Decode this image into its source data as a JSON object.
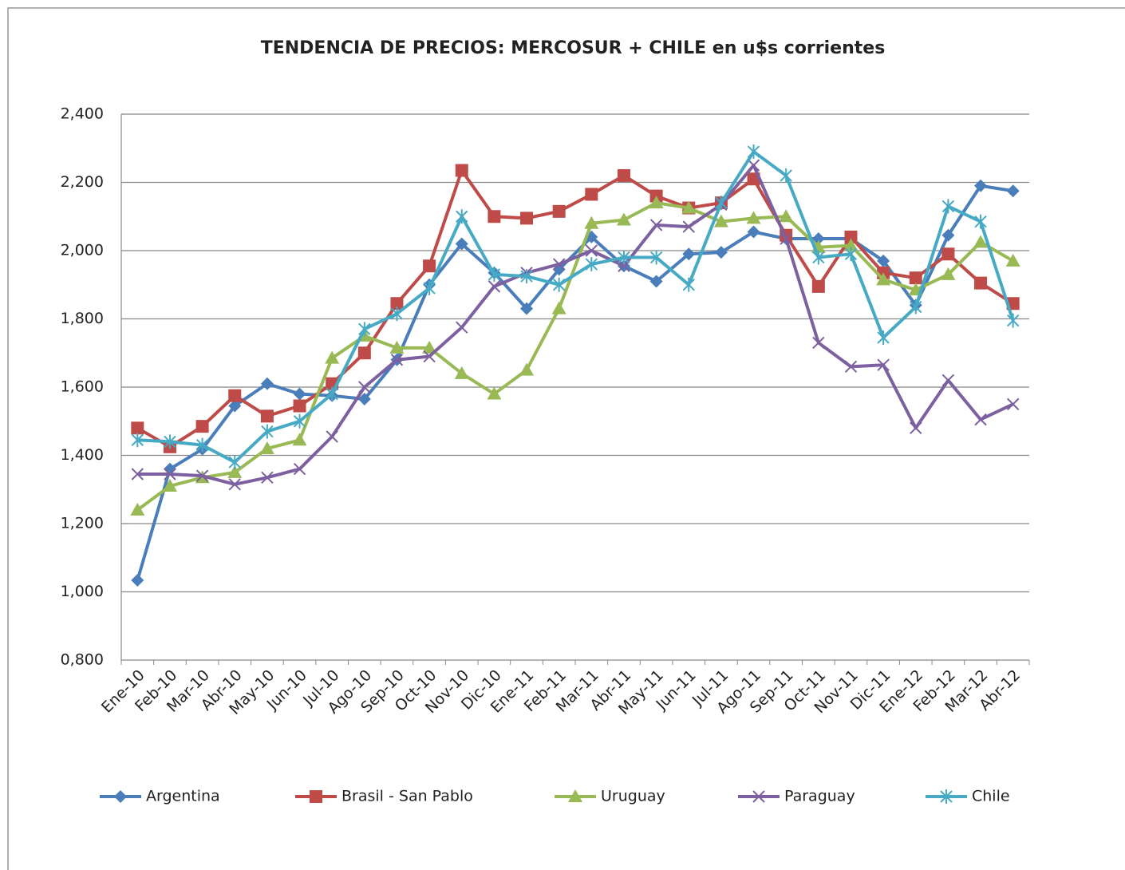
{
  "chart_data": {
    "type": "line",
    "title": "TENDENCIA DE PRECIOS: MERCOSUR + CHILE en u$s corrientes",
    "categories": [
      "Ene-10",
      "Feb-10",
      "Mar-10",
      "Abr-10",
      "May-10",
      "Jun-10",
      "Jul-10",
      "Ago-10",
      "Sep-10",
      "Oct-10",
      "Nov-10",
      "Dic-10",
      "Ene-11",
      "Feb-11",
      "Mar-11",
      "Abr-11",
      "May-11",
      "Jun-11",
      "Jul-11",
      "Ago-11",
      "Sep-11",
      "Oct-11",
      "Nov-11",
      "Dic-11",
      "Ene-12",
      "Feb-12",
      "Mar-12",
      "Abr-12"
    ],
    "series": [
      {
        "name": "Argentina",
        "color": "#4a7ebb",
        "marker": "diamond",
        "values": [
          1034,
          1360,
          1418,
          1545,
          1610,
          1580,
          1575,
          1565,
          1680,
          1900,
          2020,
          1935,
          1830,
          1945,
          2040,
          1955,
          1910,
          1990,
          1995,
          2055,
          2035,
          2035,
          2035,
          1970,
          1840,
          2045,
          2190,
          2175
        ]
      },
      {
        "name": "Brasil - San Pablo",
        "color": "#be4b48",
        "marker": "square",
        "values": [
          1480,
          1425,
          1485,
          1575,
          1515,
          1545,
          1610,
          1700,
          1845,
          1955,
          2235,
          2100,
          2095,
          2115,
          2165,
          2220,
          2160,
          2125,
          2140,
          2210,
          2045,
          1895,
          2040,
          1935,
          1920,
          1990,
          1905,
          1845
        ]
      },
      {
        "name": "Uruguay",
        "color": "#98b954",
        "marker": "triangle",
        "values": [
          1240,
          1310,
          1335,
          1350,
          1420,
          1445,
          1685,
          1750,
          1715,
          1715,
          1640,
          1580,
          1650,
          1830,
          2080,
          2090,
          2140,
          2125,
          2085,
          2095,
          2100,
          2010,
          2015,
          1915,
          1885,
          1930,
          2025,
          1970
        ]
      },
      {
        "name": "Paraguay",
        "color": "#7d60a0",
        "marker": "x",
        "values": [
          1345,
          1345,
          1340,
          1315,
          1335,
          1360,
          1455,
          1600,
          1680,
          1690,
          1775,
          1895,
          1935,
          1960,
          2000,
          1955,
          2075,
          2070,
          2135,
          2250,
          2035,
          1730,
          1660,
          1665,
          1480,
          1620,
          1505,
          1550
        ]
      },
      {
        "name": "Chile",
        "color": "#46aac5",
        "marker": "asterisk",
        "values": [
          1445,
          1440,
          1430,
          1380,
          1470,
          1500,
          1580,
          1770,
          1815,
          1890,
          2100,
          1930,
          1925,
          1900,
          1960,
          1980,
          1980,
          1900,
          2140,
          2290,
          2220,
          1980,
          1990,
          1745,
          1835,
          2130,
          2085,
          1795
        ]
      }
    ],
    "ylim": [
      800,
      2400
    ],
    "yticks": [
      {
        "value": 800,
        "label": "0,800"
      },
      {
        "value": 1000,
        "label": "1,000"
      },
      {
        "value": 1200,
        "label": "1,200"
      },
      {
        "value": 1400,
        "label": "1,400"
      },
      {
        "value": 1600,
        "label": "1,600"
      },
      {
        "value": 1800,
        "label": "1,800"
      },
      {
        "value": 2000,
        "label": "2,000"
      },
      {
        "value": 2200,
        "label": "2,200"
      },
      {
        "value": 2400,
        "label": "2,400"
      }
    ],
    "grid": true,
    "legend": "bottom"
  }
}
